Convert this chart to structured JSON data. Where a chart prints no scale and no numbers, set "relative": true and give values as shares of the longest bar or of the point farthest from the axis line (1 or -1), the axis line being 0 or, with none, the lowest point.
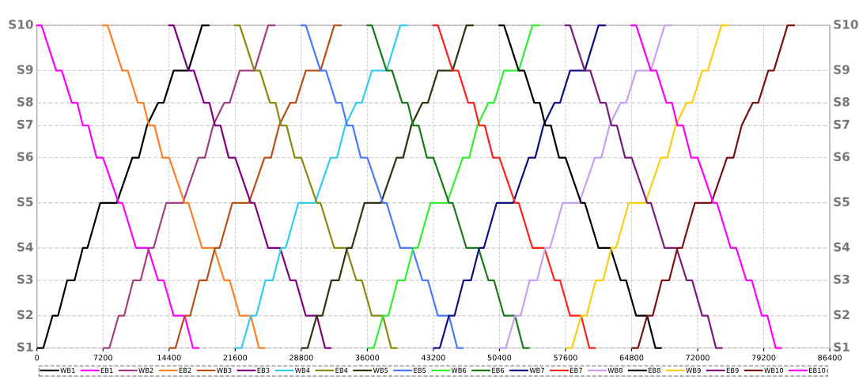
{
  "chart_data": {
    "type": "line",
    "xlim": [
      0,
      86400
    ],
    "xticks": [
      0,
      7200,
      14400,
      21600,
      28800,
      36000,
      43200,
      50400,
      57600,
      64800,
      72000,
      79200,
      86400
    ],
    "relative": true,
    "ref_lines": [
      {
        "axis": "y",
        "value": 0,
        "label": "S1",
        "color": "#d4d4d4",
        "line_style": "dashed"
      },
      {
        "axis": "y",
        "value": 0.1,
        "label": "S2",
        "color": "#d4d4d4",
        "line_style": "dashed"
      },
      {
        "axis": "y",
        "value": 0.21,
        "label": "S3",
        "color": "#d4d4d4",
        "line_style": "dashed"
      },
      {
        "axis": "y",
        "value": 0.31,
        "label": "S4",
        "color": "#d4d4d4",
        "line_style": "dashed"
      },
      {
        "axis": "y",
        "value": 0.45,
        "label": "S5",
        "color": "#d4d4d4",
        "line_style": "dashed"
      },
      {
        "axis": "y",
        "value": 0.59,
        "label": "S6",
        "color": "#d4d4d4",
        "line_style": "dashed"
      },
      {
        "axis": "y",
        "value": 0.69,
        "label": "S7",
        "color": "#d4d4d4",
        "line_style": "dashed"
      },
      {
        "axis": "y",
        "value": 0.76,
        "label": "S8",
        "color": "#d4d4d4",
        "line_style": "dashed"
      },
      {
        "axis": "y",
        "value": 0.86,
        "label": "S9",
        "color": "#d4d4d4",
        "line_style": "dashed"
      },
      {
        "axis": "y",
        "value": 1,
        "label": "S10",
        "color": "#d4d4d4",
        "line_style": "dashed"
      }
    ],
    "grid": "x",
    "legend": "bottom",
    "line_style": "solid",
    "series": [
      {
        "name": "WB1",
        "color": "#000000",
        "x": [
          100,
          700,
          1700,
          2300,
          3300,
          4100,
          5000,
          5500,
          6900,
          8700,
          10400,
          11100,
          12000,
          13200,
          13800,
          14900,
          16500,
          18000,
          18700
        ],
        "values": [
          0,
          0,
          0.1,
          0.1,
          0.21,
          0.21,
          0.31,
          0.31,
          0.45,
          0.45,
          0.59,
          0.59,
          0.69,
          0.76,
          0.76,
          0.86,
          0.86,
          1,
          1
        ]
      },
      {
        "name": "EB1",
        "color": "#ff00ff",
        "x": [
          0,
          500,
          2100,
          2700,
          3800,
          4400,
          5000,
          5600,
          6500,
          7200,
          8900,
          9300,
          10800,
          12100,
          13200,
          13800,
          14900,
          16100,
          17000,
          17600
        ],
        "values": [
          1,
          1,
          0.86,
          0.86,
          0.76,
          0.76,
          0.69,
          0.69,
          0.59,
          0.59,
          0.45,
          0.45,
          0.31,
          0.31,
          0.21,
          0.21,
          0.1,
          0.1,
          0,
          0
        ]
      },
      {
        "name": "WB2",
        "color": "#a04080",
        "x": [
          7300,
          7900,
          8900,
          9500,
          10500,
          11300,
          12200,
          12700,
          14100,
          15900,
          17600,
          18300,
          19200,
          20400,
          21000,
          22100,
          23700,
          25200,
          25900
        ],
        "values": [
          0,
          0,
          0.1,
          0.1,
          0.21,
          0.21,
          0.31,
          0.31,
          0.45,
          0.45,
          0.59,
          0.59,
          0.69,
          0.76,
          0.76,
          0.86,
          0.86,
          1,
          1
        ]
      },
      {
        "name": "EB2",
        "color": "#ff7f27",
        "x": [
          7200,
          7700,
          9300,
          9900,
          11000,
          11600,
          12200,
          12800,
          13700,
          14400,
          16100,
          16500,
          18000,
          19300,
          20400,
          21000,
          22100,
          23300,
          24200,
          24800
        ],
        "values": [
          1,
          1,
          0.86,
          0.86,
          0.76,
          0.76,
          0.69,
          0.69,
          0.59,
          0.59,
          0.45,
          0.45,
          0.31,
          0.31,
          0.21,
          0.21,
          0.1,
          0.1,
          0,
          0
        ]
      },
      {
        "name": "WB3",
        "color": "#b8501c",
        "x": [
          14500,
          15100,
          16100,
          16700,
          17700,
          18500,
          19400,
          19900,
          21300,
          23100,
          24800,
          25500,
          26400,
          27600,
          28200,
          29300,
          30900,
          32400,
          33100
        ],
        "values": [
          0,
          0,
          0.1,
          0.1,
          0.21,
          0.21,
          0.31,
          0.31,
          0.45,
          0.45,
          0.59,
          0.59,
          0.69,
          0.76,
          0.76,
          0.86,
          0.86,
          1,
          1
        ]
      },
      {
        "name": "EB3",
        "color": "#800080",
        "x": [
          14400,
          14900,
          16500,
          17100,
          18200,
          18800,
          19400,
          20000,
          20900,
          21600,
          23300,
          23700,
          25200,
          26500,
          27600,
          28200,
          29300,
          30500,
          31400,
          32000
        ],
        "values": [
          1,
          1,
          0.86,
          0.86,
          0.76,
          0.76,
          0.69,
          0.69,
          0.59,
          0.59,
          0.45,
          0.45,
          0.31,
          0.31,
          0.21,
          0.21,
          0.1,
          0.1,
          0,
          0
        ]
      },
      {
        "name": "WB4",
        "color": "#33ccee",
        "x": [
          21700,
          22300,
          23300,
          23900,
          24900,
          25700,
          26600,
          27100,
          28500,
          30300,
          32000,
          32700,
          33600,
          34800,
          35400,
          36500,
          38100,
          39600,
          40300
        ],
        "values": [
          0,
          0,
          0.1,
          0.1,
          0.21,
          0.21,
          0.31,
          0.31,
          0.45,
          0.45,
          0.59,
          0.59,
          0.69,
          0.76,
          0.76,
          0.86,
          0.86,
          1,
          1
        ]
      },
      {
        "name": "EB4",
        "color": "#8a8a10",
        "x": [
          21600,
          22100,
          23700,
          24300,
          25400,
          26000,
          26600,
          27200,
          28100,
          28800,
          30500,
          30900,
          32400,
          33700,
          34800,
          35400,
          36500,
          37700,
          38600,
          39200
        ],
        "values": [
          1,
          1,
          0.86,
          0.86,
          0.76,
          0.76,
          0.69,
          0.69,
          0.59,
          0.59,
          0.45,
          0.45,
          0.31,
          0.31,
          0.21,
          0.21,
          0.1,
          0.1,
          0,
          0
        ]
      },
      {
        "name": "WB5",
        "color": "#333310",
        "x": [
          28900,
          29500,
          30500,
          31100,
          32100,
          32900,
          33800,
          34300,
          35700,
          37500,
          39200,
          39900,
          40800,
          42000,
          42600,
          43700,
          45300,
          46800,
          47500
        ],
        "values": [
          0,
          0,
          0.1,
          0.1,
          0.21,
          0.21,
          0.31,
          0.31,
          0.45,
          0.45,
          0.59,
          0.59,
          0.69,
          0.76,
          0.76,
          0.86,
          0.86,
          1,
          1
        ]
      },
      {
        "name": "EB5",
        "color": "#4d79ff",
        "x": [
          28800,
          29300,
          30900,
          31500,
          32600,
          33200,
          33800,
          34400,
          35300,
          36000,
          37700,
          38100,
          39600,
          40900,
          42000,
          42600,
          43700,
          44900,
          45800,
          46400
        ],
        "values": [
          1,
          1,
          0.86,
          0.86,
          0.76,
          0.76,
          0.69,
          0.69,
          0.59,
          0.59,
          0.45,
          0.45,
          0.31,
          0.31,
          0.21,
          0.21,
          0.1,
          0.1,
          0,
          0
        ]
      },
      {
        "name": "WB6",
        "color": "#33ee33",
        "x": [
          36100,
          36700,
          37700,
          38300,
          39300,
          40100,
          41000,
          41500,
          42900,
          44700,
          46400,
          47100,
          48000,
          49200,
          49800,
          50900,
          52500,
          54000,
          54700
        ],
        "values": [
          0,
          0,
          0.1,
          0.1,
          0.21,
          0.21,
          0.31,
          0.31,
          0.45,
          0.45,
          0.59,
          0.59,
          0.69,
          0.76,
          0.76,
          0.86,
          0.86,
          1,
          1
        ]
      },
      {
        "name": "EB6",
        "color": "#1a7a1a",
        "x": [
          36000,
          36500,
          38100,
          38700,
          39800,
          40400,
          41000,
          41600,
          42500,
          43200,
          44900,
          45300,
          46800,
          48100,
          49200,
          49800,
          50900,
          52100,
          53000,
          53600
        ],
        "values": [
          1,
          1,
          0.86,
          0.86,
          0.76,
          0.76,
          0.69,
          0.69,
          0.59,
          0.59,
          0.45,
          0.45,
          0.31,
          0.31,
          0.21,
          0.21,
          0.1,
          0.1,
          0,
          0
        ]
      },
      {
        "name": "WB7",
        "color": "#101080",
        "x": [
          43300,
          43900,
          44900,
          45500,
          46500,
          47300,
          48200,
          48700,
          50100,
          51900,
          53600,
          54300,
          55200,
          56400,
          57000,
          58100,
          59700,
          61200,
          61900
        ],
        "values": [
          0,
          0,
          0.1,
          0.1,
          0.21,
          0.21,
          0.31,
          0.31,
          0.45,
          0.45,
          0.59,
          0.59,
          0.69,
          0.76,
          0.76,
          0.86,
          0.86,
          1,
          1
        ]
      },
      {
        "name": "EB7",
        "color": "#ff2020",
        "x": [
          43200,
          43700,
          45300,
          45900,
          47000,
          47600,
          48200,
          48800,
          49700,
          50400,
          52100,
          52500,
          54000,
          55300,
          56400,
          57000,
          58100,
          59300,
          60200,
          60800
        ],
        "values": [
          1,
          1,
          0.86,
          0.86,
          0.76,
          0.76,
          0.69,
          0.69,
          0.59,
          0.59,
          0.45,
          0.45,
          0.31,
          0.31,
          0.21,
          0.21,
          0.1,
          0.1,
          0,
          0
        ]
      },
      {
        "name": "WB8",
        "color": "#c8a0f0",
        "x": [
          50500,
          51100,
          52100,
          52700,
          53700,
          54500,
          55400,
          55900,
          57300,
          59100,
          60800,
          61500,
          62400,
          63600,
          64200,
          65300,
          66900,
          68400,
          69100
        ],
        "values": [
          0,
          0,
          0.1,
          0.1,
          0.21,
          0.21,
          0.31,
          0.31,
          0.45,
          0.45,
          0.59,
          0.59,
          0.69,
          0.76,
          0.76,
          0.86,
          0.86,
          1,
          1
        ]
      },
      {
        "name": "EB8",
        "color": "#000000",
        "x": [
          50400,
          50900,
          52500,
          53100,
          54200,
          54800,
          55400,
          56000,
          56900,
          57600,
          59300,
          59700,
          61200,
          62500,
          63600,
          64200,
          65300,
          66500,
          67400,
          68000
        ],
        "values": [
          1,
          1,
          0.86,
          0.86,
          0.76,
          0.76,
          0.69,
          0.69,
          0.59,
          0.59,
          0.45,
          0.45,
          0.31,
          0.31,
          0.21,
          0.21,
          0.1,
          0.1,
          0,
          0
        ]
      },
      {
        "name": "WB9",
        "color": "#ffcc11",
        "x": [
          57700,
          58300,
          59300,
          59900,
          60900,
          61700,
          62600,
          63100,
          64500,
          66300,
          68000,
          68700,
          69600,
          70800,
          71400,
          72500,
          73100,
          74600,
          75300
        ],
        "values": [
          0,
          0,
          0.1,
          0.1,
          0.21,
          0.21,
          0.31,
          0.31,
          0.45,
          0.45,
          0.59,
          0.59,
          0.69,
          0.76,
          0.76,
          0.86,
          0.86,
          1,
          1
        ]
      },
      {
        "name": "EB9",
        "color": "#7a1a7a",
        "x": [
          57600,
          58100,
          59700,
          60300,
          61400,
          62000,
          62600,
          63200,
          64100,
          64800,
          66500,
          66900,
          68400,
          69700,
          70800,
          71400,
          72500,
          73100,
          74000,
          74600
        ],
        "values": [
          1,
          1,
          0.86,
          0.86,
          0.76,
          0.76,
          0.69,
          0.69,
          0.59,
          0.59,
          0.45,
          0.45,
          0.31,
          0.31,
          0.21,
          0.21,
          0.1,
          0.1,
          0,
          0
        ]
      },
      {
        "name": "WB10",
        "color": "#7a1212",
        "x": [
          64900,
          65500,
          66500,
          67100,
          68100,
          68900,
          69800,
          70300,
          71700,
          73500,
          75200,
          75900,
          76800,
          78000,
          78600,
          79700,
          80300,
          81800,
          82500
        ],
        "values": [
          0,
          0,
          0.1,
          0.1,
          0.21,
          0.21,
          0.31,
          0.31,
          0.45,
          0.45,
          0.59,
          0.59,
          0.69,
          0.76,
          0.76,
          0.86,
          0.86,
          1,
          1
        ]
      },
      {
        "name": "EB10",
        "color": "#ff00ff",
        "x": [
          64800,
          65300,
          66900,
          67500,
          68600,
          69200,
          69800,
          70400,
          71300,
          72000,
          73700,
          74100,
          75600,
          76200,
          77300,
          77900,
          79000,
          79600,
          80500,
          81100
        ],
        "values": [
          1,
          1,
          0.86,
          0.86,
          0.76,
          0.76,
          0.69,
          0.69,
          0.59,
          0.59,
          0.45,
          0.45,
          0.31,
          0.31,
          0.21,
          0.21,
          0.1,
          0.1,
          0,
          0
        ]
      }
    ]
  }
}
